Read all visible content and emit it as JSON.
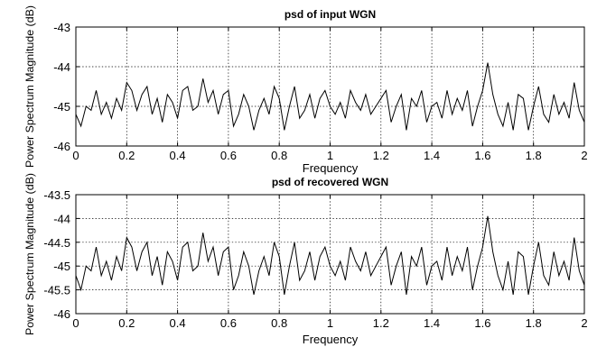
{
  "chart_data": [
    {
      "type": "line",
      "title": "psd of input WGN",
      "xlabel": "Frequency",
      "ylabel": "Power Spectrum Magnitude (dB)",
      "xlim": [
        0,
        2
      ],
      "ylim": [
        -46,
        -43
      ],
      "xticks": [
        0,
        0.2,
        0.4,
        0.6,
        0.8,
        1,
        1.2,
        1.4,
        1.6,
        1.8,
        2
      ],
      "xtick_labels": [
        "0",
        "0.2",
        "0.4",
        "0.6",
        "0.8",
        "1",
        "1.2",
        "1.4",
        "1.6",
        "1.8",
        "2"
      ],
      "yticks": [
        -46,
        -45,
        -44,
        -43
      ],
      "ytick_labels": [
        "-46",
        "-45",
        "-44",
        "-43"
      ],
      "grid": true,
      "series": [
        {
          "color": "#000000",
          "x": [
            0,
            0.02,
            0.04,
            0.06,
            0.08,
            0.1,
            0.12,
            0.14,
            0.16,
            0.18,
            0.2,
            0.22,
            0.24,
            0.26,
            0.28,
            0.3,
            0.32,
            0.34,
            0.36,
            0.38,
            0.4,
            0.42,
            0.44,
            0.46,
            0.48,
            0.5,
            0.52,
            0.54,
            0.56,
            0.58,
            0.6,
            0.62,
            0.64,
            0.66,
            0.68,
            0.7,
            0.72,
            0.74,
            0.76,
            0.78,
            0.8,
            0.82,
            0.84,
            0.86,
            0.88,
            0.9,
            0.92,
            0.94,
            0.96,
            0.98,
            1,
            1.02,
            1.04,
            1.06,
            1.08,
            1.1,
            1.12,
            1.14,
            1.16,
            1.18,
            1.2,
            1.22,
            1.24,
            1.26,
            1.28,
            1.3,
            1.32,
            1.34,
            1.36,
            1.38,
            1.4,
            1.42,
            1.44,
            1.46,
            1.48,
            1.5,
            1.52,
            1.54,
            1.56,
            1.58,
            1.6,
            1.62,
            1.64,
            1.66,
            1.68,
            1.7,
            1.72,
            1.74,
            1.76,
            1.78,
            1.8,
            1.82,
            1.84,
            1.86,
            1.88,
            1.9,
            1.92,
            1.94,
            1.96,
            1.98,
            2
          ],
          "y": [
            -45.2,
            -45.5,
            -45.0,
            -45.1,
            -44.6,
            -45.2,
            -44.9,
            -45.3,
            -44.8,
            -45.1,
            -44.4,
            -44.6,
            -45.1,
            -44.7,
            -44.5,
            -45.2,
            -44.8,
            -45.4,
            -44.7,
            -44.9,
            -45.3,
            -44.6,
            -44.5,
            -45.1,
            -45.0,
            -44.3,
            -44.9,
            -44.6,
            -45.2,
            -44.7,
            -44.6,
            -45.5,
            -45.2,
            -44.7,
            -45.0,
            -45.6,
            -45.1,
            -44.8,
            -45.2,
            -44.5,
            -44.8,
            -45.6,
            -45.0,
            -44.5,
            -45.3,
            -45.1,
            -44.7,
            -45.3,
            -44.8,
            -44.6,
            -45.0,
            -45.2,
            -44.9,
            -45.3,
            -44.6,
            -44.9,
            -45.1,
            -44.7,
            -45.2,
            -45.0,
            -44.8,
            -44.6,
            -45.4,
            -45.0,
            -44.7,
            -45.6,
            -44.8,
            -45.0,
            -44.6,
            -45.4,
            -45.0,
            -44.9,
            -45.3,
            -44.6,
            -45.2,
            -44.8,
            -45.1,
            -44.6,
            -45.5,
            -45.0,
            -44.6,
            -43.9,
            -44.7,
            -45.2,
            -45.5,
            -44.9,
            -45.6,
            -44.7,
            -44.8,
            -45.6,
            -45.0,
            -44.5,
            -45.2,
            -45.4,
            -44.7,
            -45.2,
            -44.9,
            -45.3,
            -44.4,
            -45.1,
            -45.4
          ]
        }
      ]
    },
    {
      "type": "line",
      "title": "psd of recovered WGN",
      "xlabel": "Frequency",
      "ylabel": "Power Spectrum Magnitude (dB)",
      "xlim": [
        0,
        2
      ],
      "ylim": [
        -46,
        -43.5
      ],
      "xticks": [
        0,
        0.2,
        0.4,
        0.6,
        0.8,
        1,
        1.2,
        1.4,
        1.6,
        1.8,
        2
      ],
      "xtick_labels": [
        "0",
        "0.2",
        "0.4",
        "0.6",
        "0.8",
        "1",
        "1.2",
        "1.4",
        "1.6",
        "1.8",
        "2"
      ],
      "yticks": [
        -46,
        -45.5,
        -45,
        -44.5,
        -44,
        -43.5
      ],
      "ytick_labels": [
        "-46",
        "-45.5",
        "-45",
        "-44.5",
        "-44",
        "-43.5"
      ],
      "grid": true,
      "series": [
        {
          "color": "#000000",
          "x": [
            0,
            0.02,
            0.04,
            0.06,
            0.08,
            0.1,
            0.12,
            0.14,
            0.16,
            0.18,
            0.2,
            0.22,
            0.24,
            0.26,
            0.28,
            0.3,
            0.32,
            0.34,
            0.36,
            0.38,
            0.4,
            0.42,
            0.44,
            0.46,
            0.48,
            0.5,
            0.52,
            0.54,
            0.56,
            0.58,
            0.6,
            0.62,
            0.64,
            0.66,
            0.68,
            0.7,
            0.72,
            0.74,
            0.76,
            0.78,
            0.8,
            0.82,
            0.84,
            0.86,
            0.88,
            0.9,
            0.92,
            0.94,
            0.96,
            0.98,
            1,
            1.02,
            1.04,
            1.06,
            1.08,
            1.1,
            1.12,
            1.14,
            1.16,
            1.18,
            1.2,
            1.22,
            1.24,
            1.26,
            1.28,
            1.3,
            1.32,
            1.34,
            1.36,
            1.38,
            1.4,
            1.42,
            1.44,
            1.46,
            1.48,
            1.5,
            1.52,
            1.54,
            1.56,
            1.58,
            1.6,
            1.62,
            1.64,
            1.66,
            1.68,
            1.7,
            1.72,
            1.74,
            1.76,
            1.78,
            1.8,
            1.82,
            1.84,
            1.86,
            1.88,
            1.9,
            1.92,
            1.94,
            1.96,
            1.98,
            2
          ],
          "y": [
            -45.2,
            -45.5,
            -45.0,
            -45.1,
            -44.6,
            -45.2,
            -44.9,
            -45.3,
            -44.8,
            -45.1,
            -44.4,
            -44.6,
            -45.1,
            -44.7,
            -44.5,
            -45.2,
            -44.8,
            -45.4,
            -44.7,
            -44.9,
            -45.3,
            -44.6,
            -44.5,
            -45.1,
            -45.0,
            -44.3,
            -44.9,
            -44.6,
            -45.2,
            -44.7,
            -44.6,
            -45.5,
            -45.2,
            -44.7,
            -45.0,
            -45.6,
            -45.1,
            -44.8,
            -45.2,
            -44.5,
            -44.8,
            -45.6,
            -45.0,
            -44.5,
            -45.3,
            -45.1,
            -44.7,
            -45.3,
            -44.8,
            -44.6,
            -45.0,
            -45.2,
            -44.9,
            -45.3,
            -44.6,
            -44.9,
            -45.1,
            -44.7,
            -45.2,
            -45.0,
            -44.8,
            -44.6,
            -45.4,
            -45.0,
            -44.7,
            -45.6,
            -44.8,
            -45.0,
            -44.6,
            -45.4,
            -45.0,
            -44.9,
            -45.3,
            -44.6,
            -45.2,
            -44.8,
            -45.1,
            -44.6,
            -45.5,
            -45.0,
            -44.6,
            -43.95,
            -44.7,
            -45.2,
            -45.5,
            -44.9,
            -45.6,
            -44.7,
            -44.8,
            -45.6,
            -45.0,
            -44.5,
            -45.2,
            -45.4,
            -44.7,
            -45.2,
            -44.9,
            -45.3,
            -44.4,
            -45.1,
            -45.4
          ]
        }
      ]
    }
  ]
}
